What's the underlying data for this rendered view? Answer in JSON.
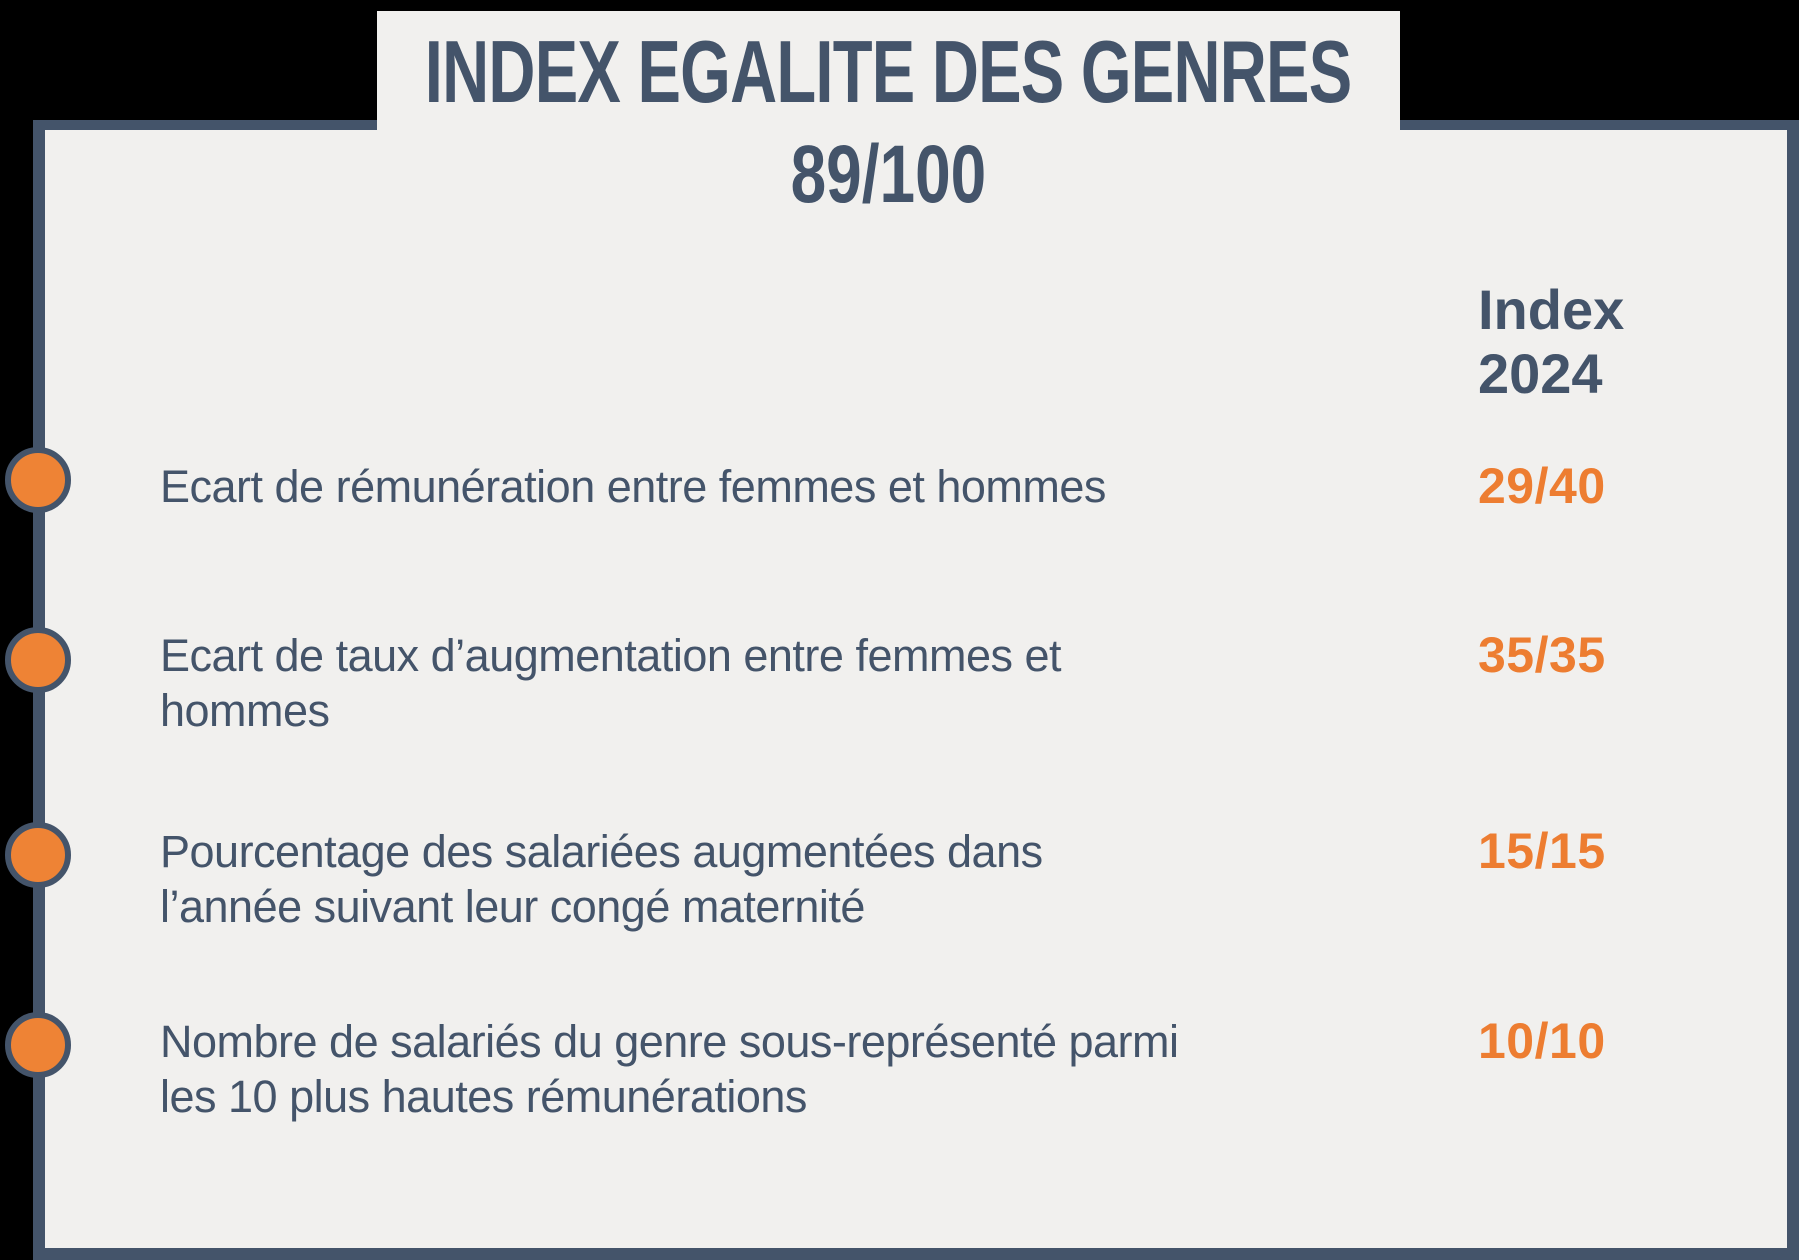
{
  "header": {
    "title": "INDEX EGALITE DES GENRES",
    "score": "89/100"
  },
  "table": {
    "column_header": "Index 2024",
    "rows": [
      {
        "label": "Ecart de rémunération entre femmes et hommes",
        "value": "29/40"
      },
      {
        "label": "Ecart de taux d’augmentation entre femmes et hommes",
        "value": "35/35"
      },
      {
        "label": "Pourcentage des salariées augmentées dans l’année suivant leur congé maternité",
        "value": "15/15"
      },
      {
        "label": "Nombre de salariés du genre sous-représenté parmi les 10 plus hautes rémunérations",
        "value": "10/10"
      }
    ]
  },
  "icons": {
    "bullet": "orange-circle-marker"
  },
  "colors": {
    "slate_text_and_border": "#44546A",
    "value_orange": "#ED7D31",
    "bullet_orange": "#EE8335",
    "card_background": "#F1F0EE",
    "canvas_background": "#000000"
  }
}
